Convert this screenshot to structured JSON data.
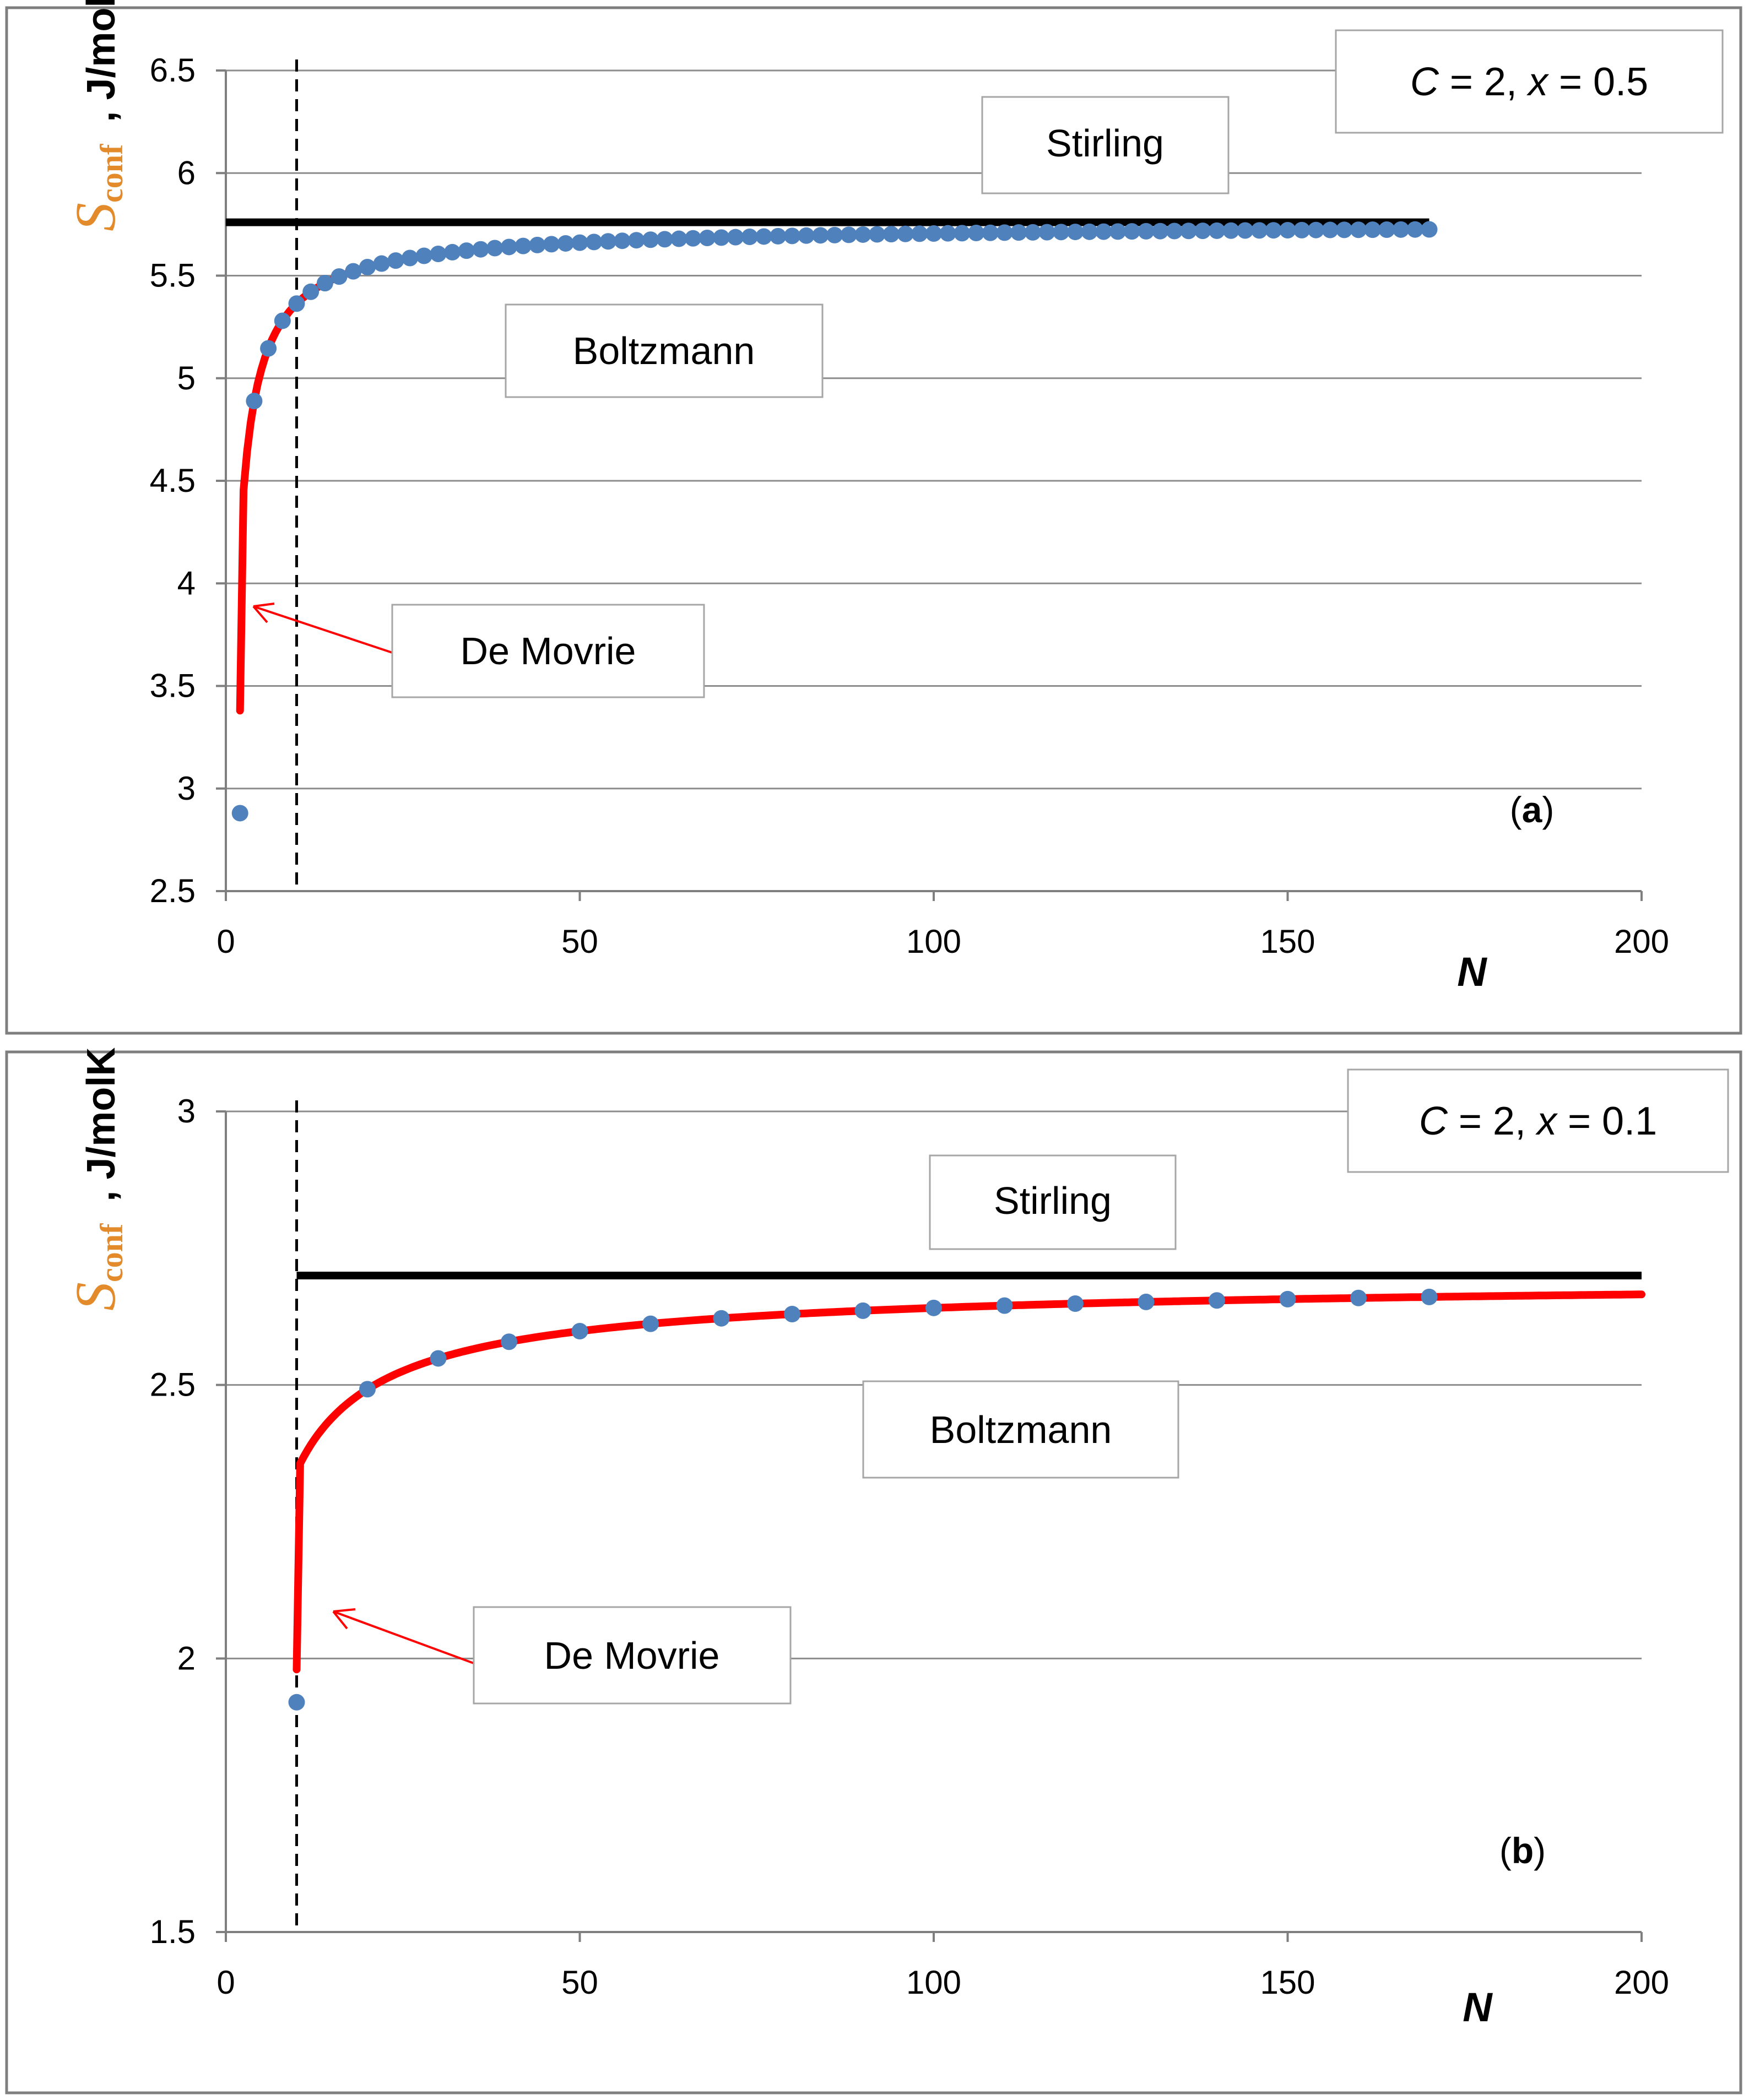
{
  "chart_data": [
    {
      "id": "a",
      "type": "scatter+line",
      "param_label": {
        "C": "2",
        "x": "0.5"
      },
      "panel_label": "a",
      "xlabel": "N",
      "ylabel_symbol": "S",
      "ylabel_sub": "conf",
      "ylabel_unit": ", J/molK",
      "xlim": [
        0,
        200
      ],
      "ylim": [
        2.5,
        6.5
      ],
      "xticks": [
        0,
        50,
        100,
        150,
        200
      ],
      "xtick_labels": [
        "0",
        "50",
        "100",
        "150",
        "200"
      ],
      "yticks": [
        2.5,
        3,
        3.5,
        4,
        4.5,
        5,
        5.5,
        6,
        6.5
      ],
      "ytick_labels": [
        "2.5",
        "3",
        "3.5",
        "4",
        "4.5",
        "5",
        "5.5",
        "6",
        "6.5"
      ],
      "vline_x": 10,
      "series": [
        {
          "name": "Stirling",
          "kind": "hline",
          "color": "#000000",
          "y": 5.76,
          "x_range": [
            0,
            170
          ]
        },
        {
          "name": "Boltzmann",
          "kind": "markers",
          "color": "#4f81bd",
          "x_start": 2,
          "x_end": 170,
          "x_step": 2,
          "S_inf": 5.76,
          "coeff": 2.87,
          "exponent": 0.86,
          "first_point": [
            2,
            2.88
          ]
        },
        {
          "name": "De Movrie",
          "kind": "line",
          "color": "#ff0000",
          "x_start": 2,
          "x_end": 40,
          "S_inf": 5.76,
          "coeff": 2.87,
          "exponent": 0.86,
          "first_point": [
            2,
            3.38
          ]
        }
      ],
      "annotations": [
        {
          "text": "Stirling",
          "x": 124,
          "y": 6.05
        },
        {
          "text": "Boltzmann",
          "x": 62,
          "y": 5.05
        },
        {
          "text": "De Movrie",
          "x": 45,
          "y": 3.65,
          "arrow_to": [
            4,
            3.86
          ]
        }
      ]
    },
    {
      "id": "b",
      "type": "scatter+line",
      "param_label": {
        "C": "2",
        "x": "0.1"
      },
      "panel_label": "b",
      "xlabel": "N",
      "ylabel_symbol": "S",
      "ylabel_sub": "conf",
      "ylabel_unit": ", J/molK",
      "xlim": [
        0,
        200
      ],
      "ylim": [
        1.5,
        3
      ],
      "xticks": [
        0,
        50,
        100,
        150,
        200
      ],
      "xtick_labels": [
        "0",
        "50",
        "100",
        "150",
        "200"
      ],
      "yticks": [
        1.5,
        2,
        2.5,
        3
      ],
      "ytick_labels": [
        "1.5",
        "2",
        "2.5",
        "3"
      ],
      "vline_x": 10,
      "series": [
        {
          "name": "Stirling",
          "kind": "hline",
          "color": "#000000",
          "y": 2.7,
          "x_range": [
            10,
            200
          ]
        },
        {
          "name": "Boltzmann",
          "kind": "markers",
          "color": "#4f81bd",
          "x_start": 10,
          "x_end": 170,
          "x_step": 10,
          "S_inf": 2.7,
          "coeff": 2.15,
          "exponent": 0.78,
          "first_point": [
            10,
            1.92
          ]
        },
        {
          "name": "De Movrie",
          "kind": "line",
          "color": "#ff0000",
          "x_start": 10,
          "x_end": 200,
          "S_inf": 2.7,
          "coeff": 2.15,
          "exponent": 0.78,
          "first_point": [
            10,
            1.98
          ]
        }
      ],
      "annotations": [
        {
          "text": "Stirling",
          "x": 116,
          "y": 2.8
        },
        {
          "text": "Boltzmann",
          "x": 111,
          "y": 2.43
        },
        {
          "text": "De Movrie",
          "x": 56,
          "y": 1.99,
          "arrow_to": [
            15,
            2.1
          ]
        }
      ]
    }
  ]
}
